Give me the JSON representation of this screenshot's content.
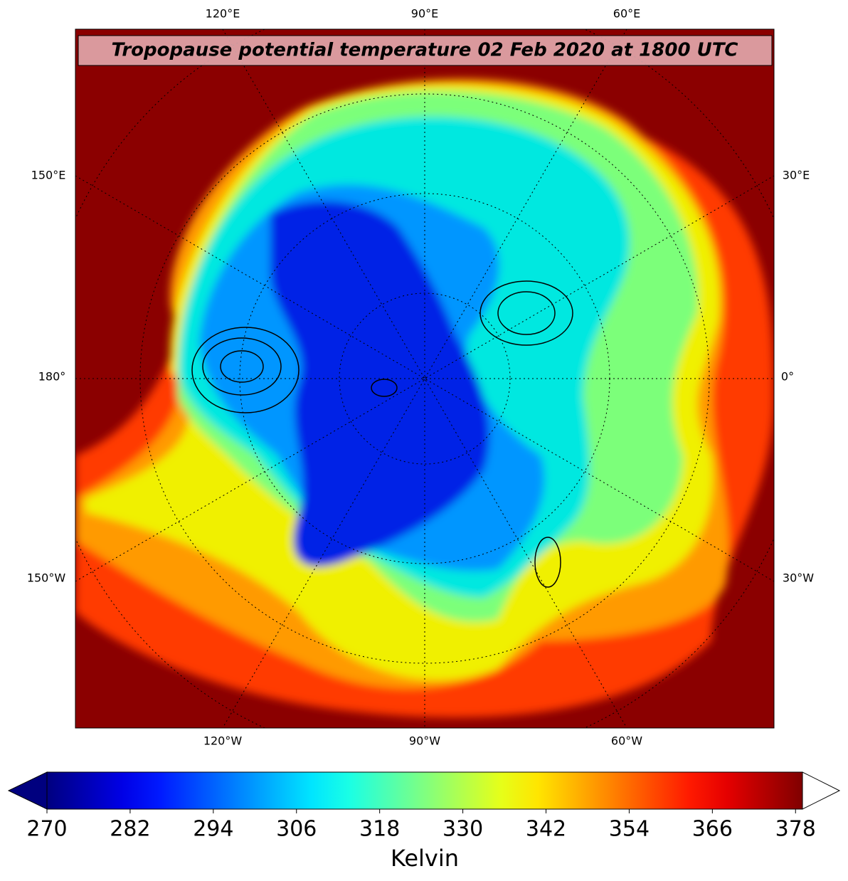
{
  "title": "Tropopause potential temperature 02 Feb 2020 at 1800 UTC",
  "map": {
    "lon_labels_top": [
      "120°E",
      "90°E",
      "60°E"
    ],
    "lon_labels_left": [
      "150°E",
      "180°",
      "150°W"
    ],
    "lon_labels_right": [
      "30°E",
      "0°",
      "30°W"
    ],
    "lon_labels_bottom": [
      "120°W",
      "90°W",
      "60°W"
    ]
  },
  "colorbar": {
    "label": "Kelvin",
    "colormap": "jet",
    "lim": [
      270,
      379
    ],
    "ticks": [
      270,
      282,
      294,
      306,
      318,
      330,
      342,
      354,
      366,
      378
    ],
    "extend_low_color": "#00007f",
    "extend_high_color": "#ffffff"
  }
}
